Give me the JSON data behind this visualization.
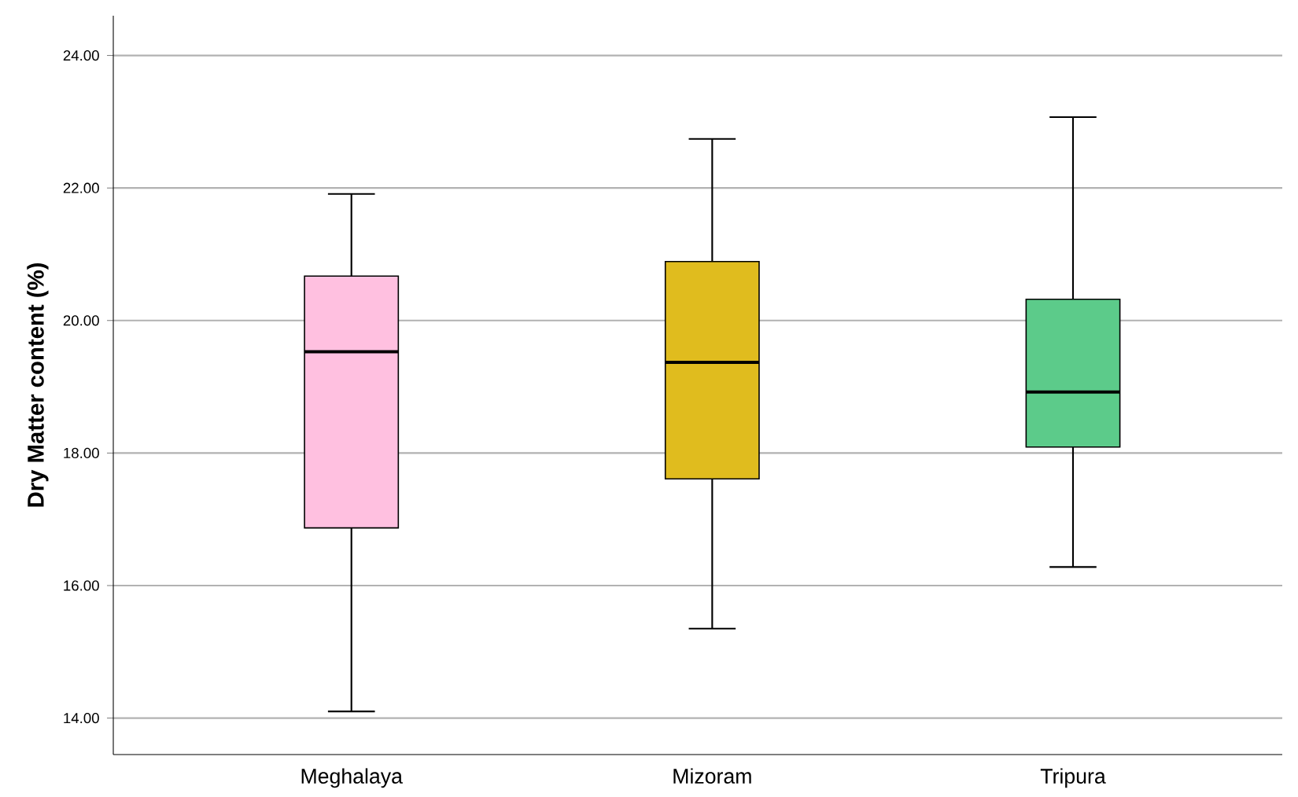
{
  "chart_data": {
    "type": "box",
    "ylabel": "Dry Matter content (%)",
    "categories": [
      "Meghalaya",
      "Mizoram",
      "Tripura"
    ],
    "boxes": [
      {
        "low": 14.1,
        "q1": 16.87,
        "median": 19.53,
        "q3": 20.67,
        "high": 21.91
      },
      {
        "low": 15.35,
        "q1": 17.61,
        "median": 19.37,
        "q3": 20.89,
        "high": 22.74
      },
      {
        "low": 16.28,
        "q1": 18.09,
        "median": 18.92,
        "q3": 20.32,
        "high": 23.07
      }
    ],
    "colors": [
      "#ffc0e0",
      "#e0bc1e",
      "#5ccb8a"
    ],
    "ylim": [
      13.45,
      24.6
    ],
    "yticks": [
      {
        "value": 14,
        "label": "14.00"
      },
      {
        "value": 16,
        "label": "16.00"
      },
      {
        "value": 18,
        "label": "18.00"
      },
      {
        "value": 20,
        "label": "20.00"
      },
      {
        "value": 22,
        "label": "22.00"
      },
      {
        "value": 24,
        "label": "24.00"
      }
    ],
    "grid": "y"
  }
}
